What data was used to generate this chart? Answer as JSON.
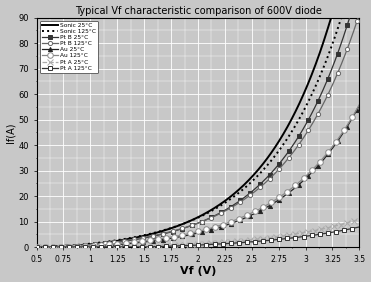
{
  "title": "Typical Vf characteristic comparison of 600V diode",
  "xlabel": "Vf (V)",
  "ylabel": "If(A)",
  "xlim": [
    0.5,
    3.5
  ],
  "ylim": [
    0,
    90
  ],
  "xticks": [
    0.5,
    0.75,
    1.0,
    1.25,
    1.5,
    1.75,
    2.0,
    2.25,
    2.5,
    2.75,
    3.0,
    3.25,
    3.5
  ],
  "yticks": [
    0,
    10,
    20,
    30,
    40,
    50,
    60,
    70,
    80,
    90
  ],
  "plot_bg_color": "#c8c8c8",
  "fig_bg_color": "#c8c8c8",
  "grid_color": "#ffffff",
  "series": [
    {
      "label": "Sonic 25°C",
      "color": "#000000",
      "linestyle": "-",
      "marker": "None",
      "markersize": 0,
      "markevery": 10,
      "linewidth": 1.4,
      "mfc": "#000000",
      "vth": 0.7,
      "k": 1.55,
      "scale": 1.8
    },
    {
      "label": "Sonic 125°C",
      "color": "#000000",
      "linestyle": ":",
      "marker": "None",
      "markersize": 0,
      "markevery": 10,
      "linewidth": 1.4,
      "mfc": "#000000",
      "vth": 0.62,
      "k": 1.45,
      "scale": 1.8
    },
    {
      "label": "Pt B 25°C",
      "color": "#333333",
      "linestyle": "-",
      "marker": "s",
      "markersize": 3,
      "markevery": 12,
      "linewidth": 0.9,
      "mfc": "#333333",
      "vth": 0.75,
      "k": 1.5,
      "scale": 1.7
    },
    {
      "label": "Pt B 125°C",
      "color": "#666666",
      "linestyle": "-",
      "marker": "o",
      "markersize": 3,
      "markevery": 12,
      "linewidth": 0.9,
      "mfc": "#ffffff",
      "vth": 0.68,
      "k": 1.42,
      "scale": 1.7
    },
    {
      "label": "Au 25°C",
      "color": "#222222",
      "linestyle": "-",
      "marker": "^",
      "markersize": 3,
      "markevery": 12,
      "linewidth": 0.9,
      "mfc": "#222222",
      "vth": 0.9,
      "k": 1.4,
      "scale": 1.5
    },
    {
      "label": "Au 125°C",
      "color": "#888888",
      "linestyle": "-",
      "marker": "o",
      "markersize": 4,
      "markevery": 10,
      "linewidth": 0.9,
      "mfc": "#ffffff",
      "vth": 0.8,
      "k": 1.35,
      "scale": 1.5
    },
    {
      "label": "Pt A 25°C",
      "color": "#aaaaaa",
      "linestyle": "--",
      "marker": "x",
      "markersize": 4,
      "markevery": 8,
      "linewidth": 0.9,
      "mfc": "#aaaaaa",
      "vth": 1.4,
      "k": 1.1,
      "scale": 1.2
    },
    {
      "label": "Pt A 125°C",
      "color": "#333333",
      "linestyle": "-",
      "marker": "s",
      "markersize": 3,
      "markevery": 10,
      "linewidth": 0.9,
      "mfc": "#ffffff",
      "vth": 1.5,
      "k": 1.05,
      "scale": 1.1
    }
  ]
}
